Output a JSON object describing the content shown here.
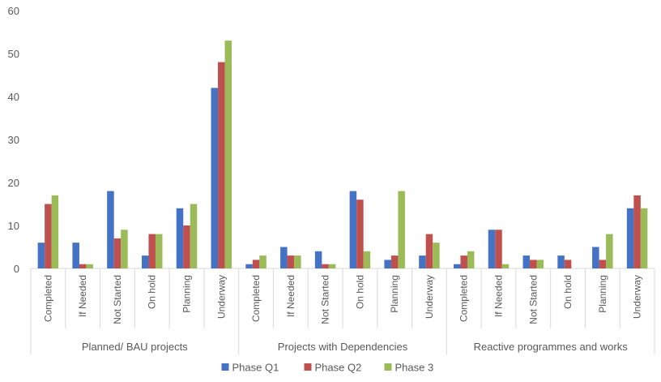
{
  "chart_data": {
    "type": "bar",
    "ylim": [
      0,
      60
    ],
    "yticks": [
      0,
      10,
      20,
      30,
      40,
      50,
      60
    ],
    "grid": false,
    "legend_position": "bottom",
    "groups": [
      {
        "label": "Planned/ BAU projects",
        "categories": [
          "Completed",
          "If Needed",
          "Not Started",
          "On hold",
          "Planning",
          "Underway"
        ]
      },
      {
        "label": "Projects with Dependencies",
        "categories": [
          "Completed",
          "If Needed",
          "Not Started",
          "On hold",
          "Planning",
          "Underway"
        ]
      },
      {
        "label": "Reactive programmes and works",
        "categories": [
          "Completed",
          "If Needed",
          "Not Started",
          "On hold",
          "Planning",
          "Underway"
        ]
      }
    ],
    "series": [
      {
        "name": "Phase Q1",
        "color": "#4472C4",
        "values": [
          6,
          6,
          18,
          3,
          14,
          42,
          1,
          5,
          4,
          18,
          2,
          3,
          1,
          9,
          3,
          3,
          5,
          14
        ]
      },
      {
        "name": "Phase Q2",
        "color": "#C0504D",
        "values": [
          15,
          1,
          7,
          8,
          10,
          48,
          2,
          3,
          1,
          16,
          3,
          8,
          3,
          9,
          2,
          2,
          2,
          17
        ]
      },
      {
        "name": "Phase 3",
        "color": "#9BBB59",
        "values": [
          17,
          1,
          9,
          8,
          15,
          53,
          3,
          3,
          1,
          4,
          18,
          6,
          4,
          1,
          2,
          0,
          8,
          14
        ]
      }
    ]
  }
}
